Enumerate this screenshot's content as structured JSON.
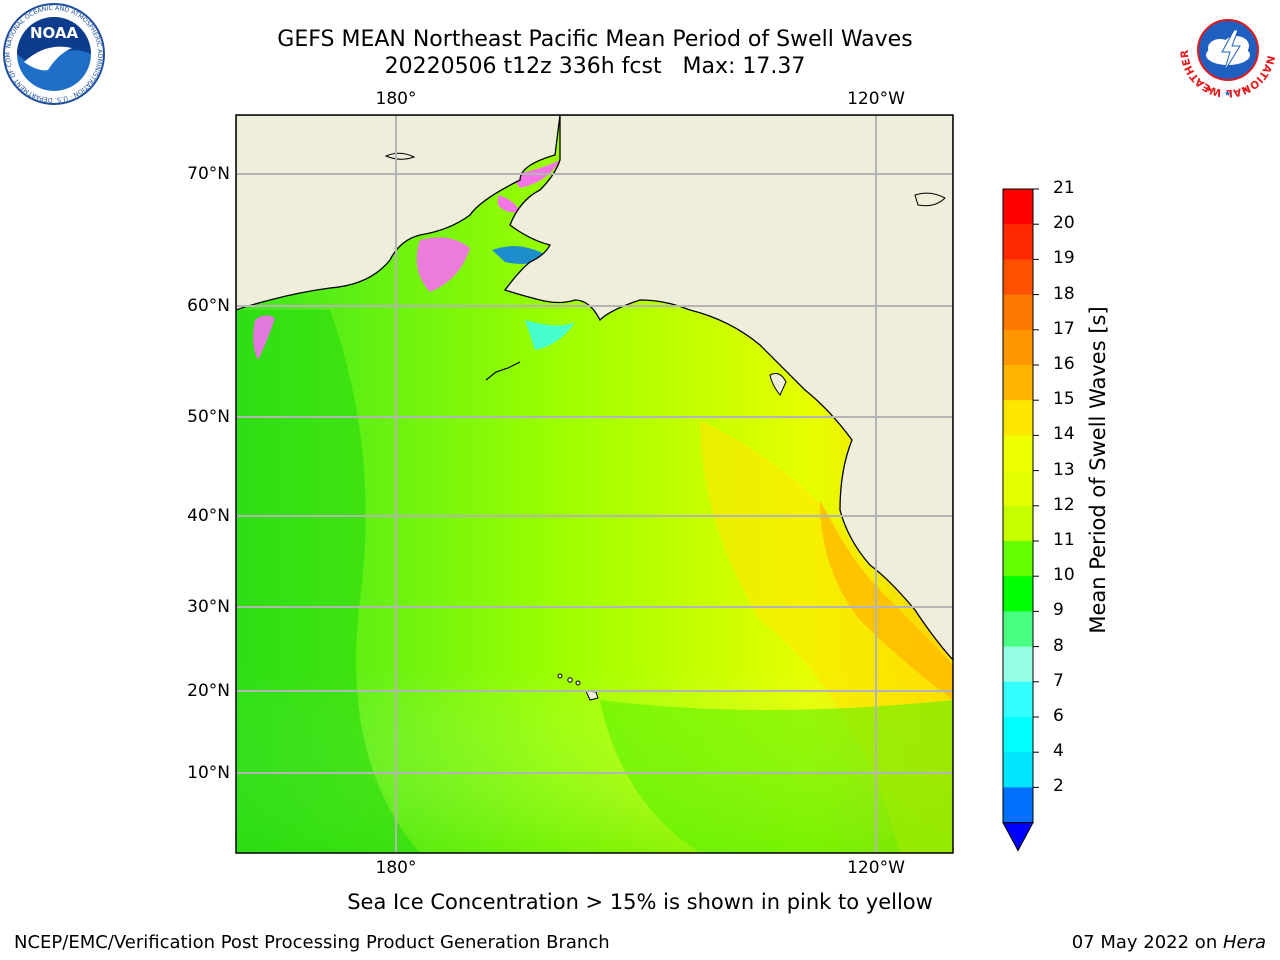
{
  "title": {
    "line1": "GEFS MEAN Northeast Pacific Mean Period of Swell Waves",
    "line2": "20220506 t12z 336h fcst   Max: 17.37"
  },
  "map": {
    "top_lon_labels": [
      "180°",
      "120°W"
    ],
    "bottom_lon_labels": [
      "180°",
      "120°W"
    ],
    "lat_labels": [
      "70°N",
      "60°N",
      "50°N",
      "40°N",
      "30°N",
      "20°N",
      "10°N"
    ],
    "land_color": "#efeedb",
    "grid_color": "#b4b4b4"
  },
  "colorbar": {
    "title": "Mean Period of Swell Waves [s]",
    "tick_labels": [
      "21",
      "20",
      "19",
      "18",
      "17",
      "16",
      "15",
      "14",
      "13",
      "12",
      "11",
      "10",
      "9",
      "8",
      "7",
      "6",
      "4",
      "2"
    ],
    "colors_top_to_bottom": [
      "#ff0000",
      "#ff2800",
      "#ff5000",
      "#ff7800",
      "#ff9600",
      "#ffb400",
      "#ffe600",
      "#f0ff00",
      "#e6ff00",
      "#c8ff00",
      "#64ff00",
      "#00ff00",
      "#4bff82",
      "#96ffe6",
      "#32ffff",
      "#00ffff",
      "#00e6ff",
      "#0070ff"
    ],
    "extend_color": "#0000ff"
  },
  "caption": "Sea Ice Concentration > 15% is shown in pink to yellow",
  "footer": {
    "left": "NCEP/EMC/Verification Post Processing Product Generation Branch",
    "right_date": "07 May 2022 on ",
    "right_machine": "Hera"
  },
  "logos": {
    "noaa_text": "NOAA",
    "noaa_ring_text": "NATIONAL OCEANIC AND ATMOSPHERIC ADMINISTRATION · U.S. DEPARTMENT OF COMMERCE",
    "nws_ring_text": "NATIONAL WEATHER SERVICE"
  }
}
